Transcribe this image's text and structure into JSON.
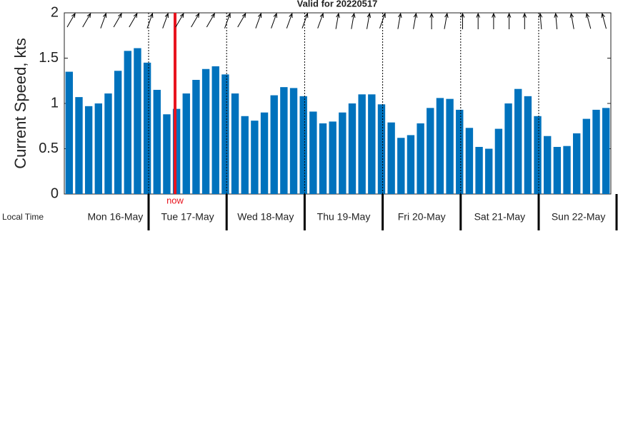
{
  "chart_data": {
    "type": "bar",
    "title": "Valid for 20220517",
    "y_label": "Current Speed, kts",
    "x_label": "Local Time",
    "days": [
      "Mon 16-May",
      "Tue 17-May",
      "Wed 18-May",
      "Thu 19-May",
      "Fri 20-May",
      "Sat 21-May",
      "Sun 22-May"
    ],
    "now_label": "now",
    "categories": [
      null,
      null,
      null,
      null,
      null,
      null,
      null,
      null,
      null,
      null,
      null,
      null,
      null,
      null,
      null,
      null,
      null,
      null,
      null,
      null,
      null,
      null,
      null,
      null,
      null,
      null,
      null,
      null,
      null,
      null,
      null,
      null,
      null,
      null,
      null,
      null,
      null,
      null,
      null,
      null,
      null,
      null,
      null,
      null,
      null,
      null,
      null,
      null,
      null,
      null,
      null,
      null,
      null,
      null,
      null,
      null
    ],
    "values": [
      1.35,
      1.07,
      0.97,
      1.0,
      1.11,
      1.36,
      1.58,
      1.61,
      1.45,
      1.15,
      0.88,
      0.94,
      1.11,
      1.26,
      1.38,
      1.41,
      1.32,
      1.11,
      0.86,
      0.81,
      0.9,
      1.09,
      1.18,
      1.17,
      1.08,
      0.91,
      0.78,
      0.8,
      0.9,
      1.0,
      1.1,
      1.1,
      0.99,
      0.79,
      0.62,
      0.65,
      0.78,
      0.95,
      1.06,
      1.05,
      0.93,
      0.73,
      0.52,
      0.5,
      0.72,
      1.0,
      1.16,
      1.08,
      0.86,
      0.64,
      0.52,
      0.53,
      0.67,
      0.83,
      0.93,
      0.95
    ],
    "color": "#0072bd",
    "ylim": [
      0,
      2
    ],
    "yticks": [
      0,
      0.5,
      1,
      1.5,
      2
    ]
  }
}
